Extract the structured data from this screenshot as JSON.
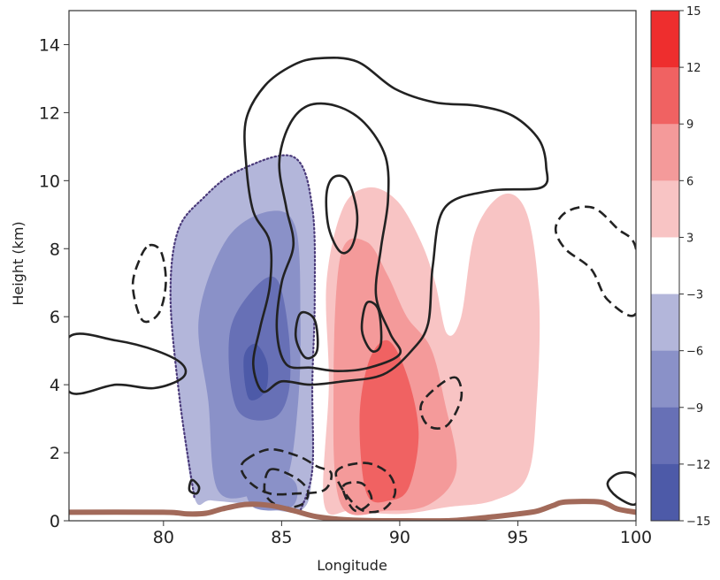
{
  "chart_data": {
    "type": "contour",
    "xlabel": "Longitude",
    "ylabel": "Height (km)",
    "xlim": [
      76,
      100
    ],
    "ylim": [
      0,
      15
    ],
    "x_ticks": [
      "80",
      "85",
      "90",
      "95",
      "100"
    ],
    "y_ticks": [
      "0",
      "2",
      "4",
      "6",
      "8",
      "10",
      "12",
      "14"
    ],
    "grid": false,
    "colorbar": {
      "ticks": [
        "15",
        "12",
        "9",
        "6",
        "3",
        "−3",
        "−6",
        "−9",
        "−12",
        "−15"
      ],
      "tick_values": [
        15,
        12,
        9,
        6,
        3,
        -3,
        -6,
        -9,
        -12,
        -15
      ],
      "colors": [
        "#ee2e2e",
        "#f06262",
        "#f49a9a",
        "#f8c4c4",
        "#ffffff",
        "#b3b6da",
        "#8a91c8",
        "#6770b6",
        "#4d5aa8"
      ]
    },
    "filled_regions": [
      {
        "level": "-6 to -3",
        "color": "#b3b6da",
        "points": [
          [
            81.3,
            0.7
          ],
          [
            80.7,
            3.5
          ],
          [
            80.3,
            6.5
          ],
          [
            80.6,
            8.5
          ],
          [
            81.7,
            9.5
          ],
          [
            83.2,
            10.3
          ],
          [
            85.5,
            10.7
          ],
          [
            86.3,
            9.2
          ],
          [
            86.4,
            6.5
          ],
          [
            86.3,
            4
          ],
          [
            86.3,
            1.5
          ],
          [
            85.8,
            0.3
          ],
          [
            83.5,
            0.5
          ],
          [
            82,
            0.6
          ]
        ]
      },
      {
        "level": "-9 to -6",
        "color": "#8a91c8",
        "points": [
          [
            82.3,
            0.9
          ],
          [
            81.9,
            3.5
          ],
          [
            81.5,
            6
          ],
          [
            82.7,
            8.3
          ],
          [
            84.5,
            9.1
          ],
          [
            85.6,
            8.6
          ],
          [
            85.8,
            6
          ],
          [
            85.7,
            3.5
          ],
          [
            85.2,
            1.2
          ],
          [
            84,
            0.8
          ]
        ]
      },
      {
        "level": "-12 to -9",
        "color": "#6770b6",
        "points": [
          [
            83.1,
            3.3
          ],
          [
            82.8,
            5.5
          ],
          [
            83.8,
            6.8
          ],
          [
            84.8,
            7.1
          ],
          [
            85.3,
            5.5
          ],
          [
            85.3,
            3.8
          ],
          [
            84.6,
            3
          ]
        ]
      },
      {
        "level": "-15 to -12",
        "color": "#4d5aa8",
        "points": [
          [
            83.6,
            3.6
          ],
          [
            83.4,
            4.8
          ],
          [
            83.9,
            5.2
          ],
          [
            84.4,
            4.6
          ],
          [
            84.3,
            3.8
          ]
        ]
      },
      {
        "level": "-9 to -6",
        "color": "#8a91c8",
        "points": [
          [
            83.8,
            0.4
          ],
          [
            83.5,
            1.3
          ],
          [
            84.6,
            1.5
          ],
          [
            85.6,
            1.1
          ],
          [
            85.4,
            0.4
          ]
        ]
      },
      {
        "level": "3 to 6",
        "color": "#f8c4c4",
        "points": [
          [
            86.8,
            0.5
          ],
          [
            87,
            4
          ],
          [
            86.9,
            7
          ],
          [
            87.6,
            9.2
          ],
          [
            88.7,
            9.8
          ],
          [
            89.9,
            9.4
          ],
          [
            90.9,
            8.2
          ],
          [
            91.5,
            7
          ],
          [
            92,
            5.5
          ],
          [
            92.6,
            6
          ],
          [
            93.2,
            8.5
          ],
          [
            94.4,
            9.6
          ],
          [
            95.4,
            9
          ],
          [
            95.9,
            6.5
          ],
          [
            95.8,
            3.5
          ],
          [
            95.4,
            1.3
          ],
          [
            94,
            0.6
          ],
          [
            92,
            0.4
          ],
          [
            90,
            0.2
          ],
          [
            88,
            0.3
          ]
        ]
      },
      {
        "level": "6 to 9",
        "color": "#f49a9a",
        "points": [
          [
            87.5,
            0.5
          ],
          [
            87.2,
            4
          ],
          [
            87.5,
            7.8
          ],
          [
            88.6,
            8.2
          ],
          [
            89.5,
            7.2
          ],
          [
            90.3,
            6
          ],
          [
            91.3,
            5.1
          ],
          [
            91.9,
            3.5
          ],
          [
            92.4,
            1.5
          ],
          [
            91.3,
            0.5
          ],
          [
            89.5,
            0.3
          ]
        ]
      },
      {
        "level": "9 to 12",
        "color": "#f06262",
        "points": [
          [
            88.6,
            0.8
          ],
          [
            88.3,
            3
          ],
          [
            88.7,
            4.7
          ],
          [
            89.5,
            5.3
          ],
          [
            90.3,
            4.3
          ],
          [
            90.8,
            2.6
          ],
          [
            90.4,
            1
          ],
          [
            89.6,
            0.6
          ]
        ]
      }
    ],
    "contour_lines": [
      {
        "style": "solid",
        "points": [
          [
            86.6,
            13.6
          ],
          [
            88.2,
            13.5
          ],
          [
            89.8,
            12.7
          ],
          [
            91.5,
            12.3
          ],
          [
            93.3,
            12.2
          ],
          [
            94.8,
            11.9
          ],
          [
            95.9,
            11.2
          ],
          [
            96.2,
            10.4
          ],
          [
            96,
            9.8
          ],
          [
            93.8,
            9.7
          ],
          [
            91.9,
            9.2
          ],
          [
            91.4,
            7.5
          ],
          [
            91.2,
            5.8
          ],
          [
            90.5,
            5
          ],
          [
            89.3,
            4.3
          ],
          [
            87.6,
            4.1
          ],
          [
            86.2,
            4
          ],
          [
            85,
            4.1
          ],
          [
            84.2,
            3.8
          ],
          [
            83.8,
            4.6
          ],
          [
            84.1,
            5.7
          ],
          [
            84.5,
            6.9
          ],
          [
            84.5,
            8.2
          ],
          [
            83.8,
            9.1
          ],
          [
            83.5,
            10.5
          ],
          [
            83.5,
            11.8
          ],
          [
            84.3,
            12.8
          ],
          [
            85.5,
            13.4
          ]
        ]
      },
      {
        "style": "solid",
        "points": [
          [
            86.1,
            12.2
          ],
          [
            87.3,
            12.2
          ],
          [
            88.5,
            11.7
          ],
          [
            89.4,
            10.7
          ],
          [
            89.5,
            9.4
          ],
          [
            89.2,
            8
          ],
          [
            89,
            6.6
          ],
          [
            89.6,
            5.5
          ],
          [
            90,
            4.9
          ],
          [
            88.7,
            4.5
          ],
          [
            87.4,
            4.4
          ],
          [
            86.3,
            4.5
          ],
          [
            85.2,
            4.6
          ],
          [
            84.8,
            5.6
          ],
          [
            85,
            7
          ],
          [
            85.5,
            8.1
          ],
          [
            85.2,
            9.2
          ],
          [
            84.9,
            10.5
          ],
          [
            85.3,
            11.6
          ]
        ]
      },
      {
        "style": "solid",
        "points": [
          [
            87.2,
            10.1
          ],
          [
            87.8,
            10
          ],
          [
            88.2,
            9
          ],
          [
            88,
            8.1
          ],
          [
            87.5,
            7.9
          ],
          [
            87,
            8.6
          ],
          [
            86.9,
            9.6
          ]
        ]
      },
      {
        "style": "solid",
        "points": [
          [
            85.8,
            6.1
          ],
          [
            86.4,
            5.9
          ],
          [
            86.5,
            5
          ],
          [
            86,
            4.8
          ],
          [
            85.6,
            5.4
          ]
        ]
      },
      {
        "style": "solid",
        "points": [
          [
            88.6,
            6.4
          ],
          [
            89.1,
            6.2
          ],
          [
            89.2,
            5.2
          ],
          [
            88.8,
            5
          ],
          [
            88.4,
            5.6
          ]
        ]
      },
      {
        "style": "solid",
        "points": [
          [
            76,
            5.4
          ],
          [
            78,
            5.3
          ],
          [
            79.7,
            5
          ],
          [
            80.8,
            4.6
          ],
          [
            80.8,
            4.2
          ],
          [
            79.6,
            3.9
          ],
          [
            78,
            4
          ],
          [
            76,
            3.8
          ]
        ]
      },
      {
        "style": "solid",
        "points": [
          [
            81.2,
            1.2
          ],
          [
            81.5,
            1
          ],
          [
            81.4,
            0.8
          ],
          [
            81.1,
            0.9
          ]
        ]
      },
      {
        "style": "solid",
        "points": [
          [
            100,
            1.3
          ],
          [
            99.3,
            1.4
          ],
          [
            98.8,
            1.1
          ],
          [
            99.2,
            0.7
          ],
          [
            100,
            0.5
          ]
        ]
      },
      {
        "style": "dashed",
        "points": [
          [
            100,
            6.1
          ],
          [
            98.8,
            6.5
          ],
          [
            98.1,
            7.4
          ],
          [
            97,
            8
          ],
          [
            96.6,
            8.6
          ],
          [
            97.1,
            9.1
          ],
          [
            98.2,
            9.2
          ],
          [
            99.2,
            8.6
          ],
          [
            100,
            8
          ]
        ]
      },
      {
        "style": "dashed",
        "points": [
          [
            79.4,
            8.1
          ],
          [
            79.9,
            7.9
          ],
          [
            80.1,
            7
          ],
          [
            79.8,
            6.1
          ],
          [
            79.1,
            5.9
          ],
          [
            78.7,
            6.9
          ],
          [
            79,
            7.7
          ]
        ]
      },
      {
        "style": "dashed",
        "points": [
          [
            92.4,
            4.2
          ],
          [
            92.6,
            3.6
          ],
          [
            92,
            2.8
          ],
          [
            91.2,
            2.8
          ],
          [
            90.9,
            3.4
          ],
          [
            91.7,
            4
          ]
        ]
      },
      {
        "style": "dashed",
        "points": [
          [
            83.5,
            1.8
          ],
          [
            84.5,
            2.1
          ],
          [
            85.7,
            1.9
          ],
          [
            86.5,
            1.6
          ],
          [
            87.1,
            1.4
          ],
          [
            86.8,
            0.9
          ],
          [
            85.6,
            0.8
          ],
          [
            84.5,
            0.8
          ],
          [
            83.7,
            1.1
          ],
          [
            83.3,
            1.5
          ]
        ]
      },
      {
        "style": "dashed",
        "points": [
          [
            84.5,
            1.5
          ],
          [
            85.5,
            1.3
          ],
          [
            86.1,
            0.9
          ],
          [
            85.9,
            0.5
          ],
          [
            85,
            0.4
          ],
          [
            84.3,
            0.8
          ]
        ]
      },
      {
        "style": "dashed",
        "points": [
          [
            87.3,
            1.4
          ],
          [
            88.5,
            1.7
          ],
          [
            89.5,
            1.4
          ],
          [
            89.8,
            0.8
          ],
          [
            89.2,
            0.3
          ],
          [
            88.2,
            0.4
          ]
        ]
      },
      {
        "style": "dashed",
        "points": [
          [
            87.6,
            1
          ],
          [
            88.4,
            1.1
          ],
          [
            88.8,
            0.6
          ],
          [
            88.1,
            0.3
          ]
        ]
      }
    ],
    "dotted_boundary": {
      "color": "#4a3a7a",
      "points": [
        [
          81.3,
          0.7
        ],
        [
          80.7,
          3.5
        ],
        [
          80.3,
          6.5
        ],
        [
          80.6,
          8.5
        ],
        [
          81.7,
          9.5
        ],
        [
          83.2,
          10.3
        ],
        [
          85.5,
          10.7
        ],
        [
          86.3,
          9.2
        ],
        [
          86.4,
          6.5
        ],
        [
          86.3,
          4
        ],
        [
          86.3,
          1.5
        ],
        [
          85.8,
          0.3
        ]
      ]
    },
    "terrain": {
      "color": "#a26a5a",
      "points": [
        [
          76,
          0.25
        ],
        [
          80,
          0.25
        ],
        [
          81,
          0.2
        ],
        [
          81.8,
          0.22
        ],
        [
          82.5,
          0.35
        ],
        [
          83.5,
          0.48
        ],
        [
          84.5,
          0.45
        ],
        [
          85.5,
          0.3
        ],
        [
          86.5,
          0.12
        ],
        [
          88,
          0.02
        ],
        [
          90,
          0
        ],
        [
          92,
          0
        ],
        [
          93,
          0.05
        ],
        [
          94,
          0.12
        ],
        [
          95,
          0.2
        ],
        [
          95.8,
          0.28
        ],
        [
          96.5,
          0.45
        ],
        [
          97,
          0.55
        ],
        [
          98.5,
          0.55
        ],
        [
          99.2,
          0.35
        ],
        [
          100,
          0.25
        ]
      ]
    }
  }
}
